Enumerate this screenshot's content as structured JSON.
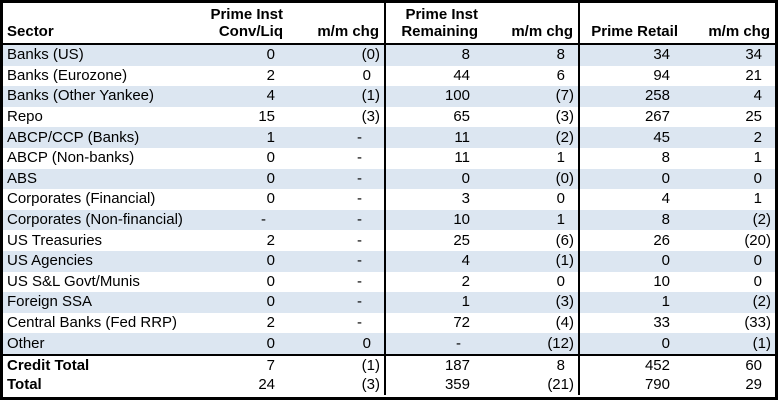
{
  "table": {
    "header": {
      "sector": "Sector",
      "group1_line1": "Prime Inst",
      "group1_line2": "Conv/Liq",
      "mm1": "m/m chg",
      "group2_line1": "Prime Inst",
      "group2_line2": "Remaining",
      "mm2": "m/m chg",
      "group3": "Prime Retail",
      "mm3": "m/m chg"
    },
    "rows": [
      {
        "sector": "Banks (US)",
        "values": [
          "0",
          "(0)",
          "8",
          "8",
          "34",
          "34"
        ]
      },
      {
        "sector": "Banks (Eurozone)",
        "values": [
          "2",
          "0",
          "44",
          "6",
          "94",
          "21"
        ]
      },
      {
        "sector": "Banks (Other Yankee)",
        "values": [
          "4",
          "(1)",
          "100",
          "(7)",
          "258",
          "4"
        ]
      },
      {
        "sector": "Repo",
        "values": [
          "15",
          "(3)",
          "65",
          "(3)",
          "267",
          "25"
        ]
      },
      {
        "sector": "ABCP/CCP (Banks)",
        "values": [
          "1",
          "-",
          "11",
          "(2)",
          "45",
          "2"
        ]
      },
      {
        "sector": "ABCP (Non-banks)",
        "values": [
          "0",
          "-",
          "11",
          "1",
          "8",
          "1"
        ]
      },
      {
        "sector": "ABS",
        "values": [
          "0",
          "-",
          "0",
          "(0)",
          "0",
          "0"
        ]
      },
      {
        "sector": "Corporates (Financial)",
        "values": [
          "0",
          "-",
          "3",
          "0",
          "4",
          "1"
        ]
      },
      {
        "sector": "Corporates (Non-financial)",
        "values": [
          "-",
          "-",
          "10",
          "1",
          "8",
          "(2)"
        ]
      },
      {
        "sector": "US Treasuries",
        "values": [
          "2",
          "-",
          "25",
          "(6)",
          "26",
          "(20)"
        ]
      },
      {
        "sector": "US Agencies",
        "values": [
          "0",
          "-",
          "4",
          "(1)",
          "0",
          "0"
        ]
      },
      {
        "sector": "US S&L Govt/Munis",
        "values": [
          "0",
          "-",
          "2",
          "0",
          "10",
          "0"
        ]
      },
      {
        "sector": "Foreign SSA",
        "values": [
          "0",
          "-",
          "1",
          "(3)",
          "1",
          "(2)"
        ]
      },
      {
        "sector": "Central Banks (Fed RRP)",
        "values": [
          "2",
          "-",
          "72",
          "(4)",
          "33",
          "(33)"
        ]
      },
      {
        "sector": "Other",
        "values": [
          "0",
          "0",
          "-",
          "(12)",
          "0",
          "(1)"
        ]
      }
    ],
    "totals": [
      {
        "sector": "Credit Total",
        "values": [
          "7",
          "(1)",
          "187",
          "8",
          "452",
          "60"
        ]
      },
      {
        "sector": "Total",
        "values": [
          "24",
          "(3)",
          "359",
          "(21)",
          "790",
          "29"
        ]
      }
    ],
    "colors": {
      "stripe": "#DCE6F1",
      "border": "#000000",
      "background": "#FFFFFF",
      "text": "#000000"
    }
  },
  "chart_data": {
    "type": "table",
    "title": "",
    "columns": [
      "Sector",
      "Prime Inst Conv/Liq",
      "m/m chg",
      "Prime Inst Remaining",
      "m/m chg",
      "Prime Retail",
      "m/m chg"
    ],
    "rows": [
      [
        "Banks (US)",
        "0",
        "(0)",
        "8",
        "8",
        "34",
        "34"
      ],
      [
        "Banks (Eurozone)",
        "2",
        "0",
        "44",
        "6",
        "94",
        "21"
      ],
      [
        "Banks (Other Yankee)",
        "4",
        "(1)",
        "100",
        "(7)",
        "258",
        "4"
      ],
      [
        "Repo",
        "15",
        "(3)",
        "65",
        "(3)",
        "267",
        "25"
      ],
      [
        "ABCP/CCP (Banks)",
        "1",
        "-",
        "11",
        "(2)",
        "45",
        "2"
      ],
      [
        "ABCP (Non-banks)",
        "0",
        "-",
        "11",
        "1",
        "8",
        "1"
      ],
      [
        "ABS",
        "0",
        "-",
        "0",
        "(0)",
        "0",
        "0"
      ],
      [
        "Corporates (Financial)",
        "0",
        "-",
        "3",
        "0",
        "4",
        "1"
      ],
      [
        "Corporates (Non-financial)",
        "-",
        "-",
        "10",
        "1",
        "8",
        "(2)"
      ],
      [
        "US Treasuries",
        "2",
        "-",
        "25",
        "(6)",
        "26",
        "(20)"
      ],
      [
        "US Agencies",
        "0",
        "-",
        "4",
        "(1)",
        "0",
        "0"
      ],
      [
        "US S&L Govt/Munis",
        "0",
        "-",
        "2",
        "0",
        "10",
        "0"
      ],
      [
        "Foreign SSA",
        "0",
        "-",
        "1",
        "(3)",
        "1",
        "(2)"
      ],
      [
        "Central Banks (Fed RRP)",
        "2",
        "-",
        "72",
        "(4)",
        "33",
        "(33)"
      ],
      [
        "Other",
        "0",
        "0",
        "-",
        "(12)",
        "0",
        "(1)"
      ],
      [
        "Credit Total",
        "7",
        "(1)",
        "187",
        "8",
        "452",
        "60"
      ],
      [
        "Total",
        "24",
        "(3)",
        "359",
        "(21)",
        "790",
        "29"
      ]
    ]
  }
}
